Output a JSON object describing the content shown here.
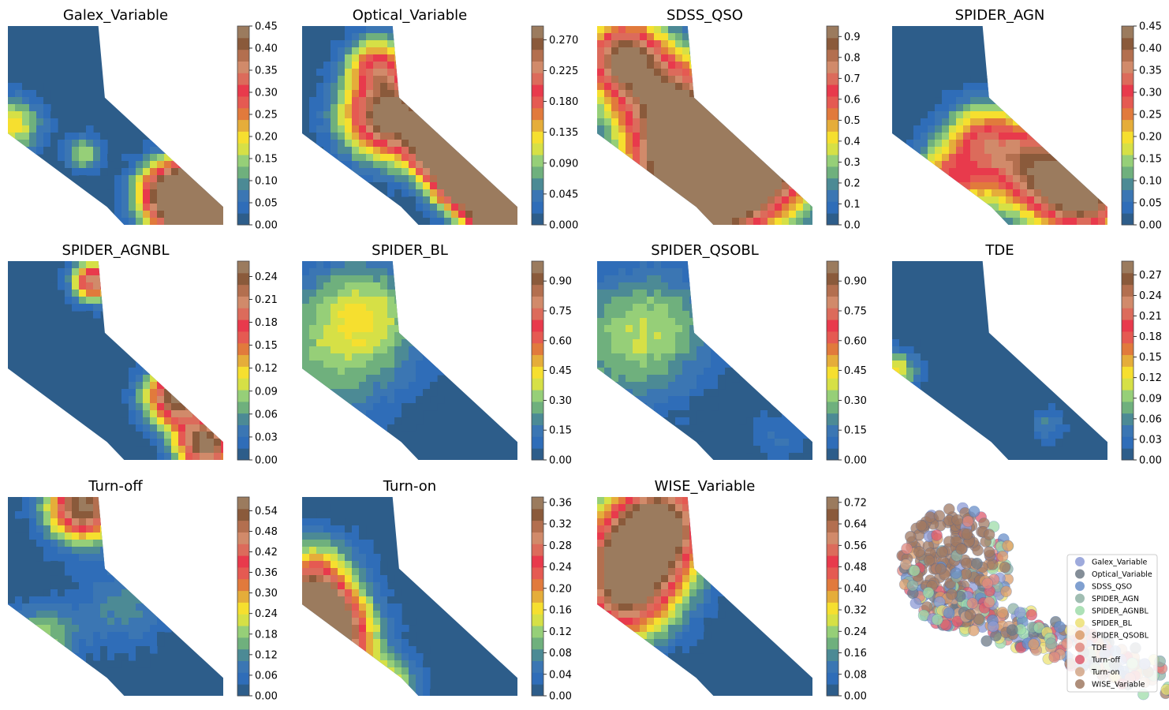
{
  "palette": [
    "#2d5d8a",
    "#2f6db8",
    "#3b76b3",
    "#4c8a95",
    "#6fb07d",
    "#96cf78",
    "#d6e046",
    "#f6df2f",
    "#e5ad3a",
    "#e17a3c",
    "#e55a52",
    "#e83a4c",
    "#dc6b5b",
    "#d18a6a",
    "#b36f4f",
    "#8a5a3b",
    "#9b7b5e"
  ],
  "chart_data": [
    {
      "type": "heatmap",
      "title": "Galex_Variable",
      "ticks": [
        "0.00",
        "0.05",
        "0.10",
        "0.15",
        "0.20",
        "0.25",
        "0.30",
        "0.35",
        "0.40",
        "0.45"
      ],
      "vmax": 0.45,
      "hotspots": [
        [
          0.95,
          0.92,
          1.0,
          0.16
        ],
        [
          0.72,
          0.82,
          0.25,
          0.09
        ],
        [
          0.35,
          0.64,
          0.16,
          0.06
        ],
        [
          0.02,
          0.5,
          0.2,
          0.1
        ]
      ]
    },
    {
      "type": "heatmap",
      "title": "Optical_Variable",
      "ticks": [
        "0.000",
        "0.045",
        "0.090",
        "0.135",
        "0.180",
        "0.225",
        "0.270"
      ],
      "vmax": 0.29,
      "hotspots": [
        [
          0.98,
          0.92,
          0.9,
          0.12
        ],
        [
          0.72,
          0.6,
          0.7,
          0.12
        ],
        [
          0.4,
          0.45,
          0.3,
          0.15
        ],
        [
          0.35,
          0.18,
          0.15,
          0.1
        ],
        [
          0.72,
          0.82,
          0.2,
          0.08
        ]
      ]
    },
    {
      "type": "heatmap",
      "title": "SDSS_QSO",
      "ticks": [
        "0.0",
        "0.1",
        "0.2",
        "0.3",
        "0.4",
        "0.5",
        "0.6",
        "0.7",
        "0.8",
        "0.9"
      ],
      "vmax": 0.95,
      "hotspots": [
        [
          0.55,
          0.62,
          0.95,
          0.22
        ],
        [
          0.45,
          0.85,
          0.9,
          0.2
        ],
        [
          0.12,
          0.15,
          0.8,
          0.14
        ],
        [
          0.8,
          0.7,
          0.6,
          0.2
        ],
        [
          0.3,
          0.38,
          0.6,
          0.18
        ]
      ]
    },
    {
      "type": "heatmap",
      "title": "SPIDER_AGN",
      "ticks": [
        "0.00",
        "0.05",
        "0.10",
        "0.15",
        "0.20",
        "0.25",
        "0.30",
        "0.35",
        "0.40",
        "0.45"
      ],
      "vmax": 0.45,
      "hotspots": [
        [
          0.9,
          0.85,
          0.42,
          0.15
        ],
        [
          0.65,
          0.7,
          0.35,
          0.18
        ],
        [
          0.25,
          0.78,
          0.25,
          0.12
        ],
        [
          0.4,
          0.55,
          0.2,
          0.12
        ]
      ]
    },
    {
      "type": "heatmap",
      "title": "SPIDER_AGNBL",
      "ticks": [
        "0.00",
        "0.03",
        "0.06",
        "0.09",
        "0.12",
        "0.15",
        "0.18",
        "0.21",
        "0.24"
      ],
      "vmax": 0.26,
      "hotspots": [
        [
          0.92,
          0.92,
          0.26,
          0.1
        ],
        [
          0.78,
          0.68,
          0.26,
          0.1
        ],
        [
          0.4,
          0.1,
          0.22,
          0.07
        ]
      ]
    },
    {
      "type": "heatmap",
      "title": "SPIDER_BL",
      "ticks": [
        "0.00",
        "0.15",
        "0.30",
        "0.45",
        "0.60",
        "0.75",
        "0.90"
      ],
      "vmax": 1.0,
      "hotspots": [
        [
          0.1,
          0.5,
          0.25,
          0.25
        ],
        [
          0.35,
          0.3,
          0.2,
          0.2
        ],
        [
          0.12,
          0.88,
          0.8,
          0.07
        ],
        [
          0.25,
          0.2,
          0.15,
          0.15
        ]
      ]
    },
    {
      "type": "heatmap",
      "title": "SPIDER_QSOBL",
      "ticks": [
        "0.00",
        "0.15",
        "0.30",
        "0.45",
        "0.60",
        "0.75",
        "0.90"
      ],
      "vmax": 1.0,
      "hotspots": [
        [
          0.1,
          0.45,
          0.22,
          0.25
        ],
        [
          0.3,
          0.3,
          0.2,
          0.2
        ],
        [
          0.85,
          0.88,
          0.12,
          0.1
        ]
      ]
    },
    {
      "type": "heatmap",
      "title": "TDE",
      "ticks": [
        "0.00",
        "0.03",
        "0.06",
        "0.09",
        "0.12",
        "0.15",
        "0.18",
        "0.21",
        "0.24",
        "0.27"
      ],
      "vmax": 0.29,
      "hotspots": [
        [
          0.02,
          0.55,
          0.12,
          0.07
        ],
        [
          0.72,
          0.82,
          0.05,
          0.06
        ]
      ]
    },
    {
      "type": "heatmap",
      "title": "Turn-off",
      "ticks": [
        "0.00",
        "0.06",
        "0.12",
        "0.18",
        "0.24",
        "0.30",
        "0.36",
        "0.42",
        "0.48",
        "0.54"
      ],
      "vmax": 0.58,
      "hotspots": [
        [
          0.35,
          0.05,
          0.58,
          0.12
        ],
        [
          0.15,
          0.72,
          0.2,
          0.12
        ],
        [
          0.55,
          0.55,
          0.12,
          0.15
        ]
      ]
    },
    {
      "type": "heatmap",
      "title": "Turn-on",
      "ticks": [
        "0.00",
        "0.04",
        "0.08",
        "0.12",
        "0.16",
        "0.20",
        "0.24",
        "0.28",
        "0.32",
        "0.36"
      ],
      "vmax": 0.37,
      "hotspots": [
        [
          0.05,
          0.6,
          0.37,
          0.12
        ],
        [
          0.15,
          0.72,
          0.3,
          0.14
        ],
        [
          0.05,
          0.4,
          0.2,
          0.14
        ],
        [
          0.4,
          0.95,
          0.15,
          0.1
        ]
      ]
    },
    {
      "type": "heatmap",
      "title": "WISE_Variable",
      "ticks": [
        "0.00",
        "0.08",
        "0.16",
        "0.24",
        "0.32",
        "0.40",
        "0.48",
        "0.56",
        "0.64",
        "0.72"
      ],
      "vmax": 0.74,
      "hotspots": [
        [
          0.18,
          0.3,
          0.74,
          0.18
        ],
        [
          0.3,
          0.1,
          0.55,
          0.15
        ],
        [
          0.12,
          0.55,
          0.4,
          0.16
        ]
      ]
    },
    {
      "type": "scatter",
      "legend": [
        "Galex_Variable",
        "Optical_Variable",
        "SDSS_QSO",
        "SPIDER_AGN",
        "SPIDER_AGNBL",
        "SPIDER_BL",
        "SPIDER_QSOBL",
        "TDE",
        "Turn-off",
        "Turn-on",
        "WISE_Variable"
      ],
      "legend_colors": [
        "#8d9bd6",
        "#6e7a86",
        "#6a8fc8",
        "#8fb1a4",
        "#9fdcaa",
        "#ece174",
        "#d99c6a",
        "#e08980",
        "#dd5b6e",
        "#d4a687",
        "#a07a63"
      ],
      "legend_position": "lower-right"
    }
  ]
}
